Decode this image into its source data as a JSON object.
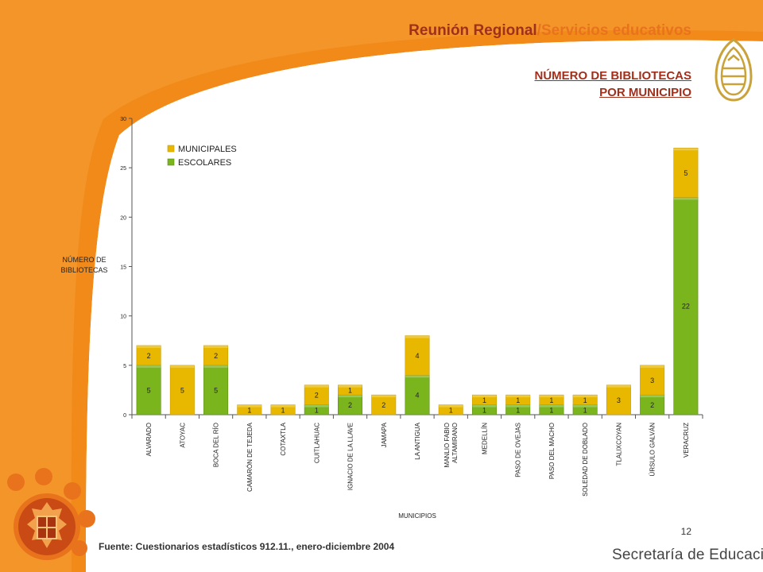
{
  "header": {
    "title_main": "Reunión Regional",
    "title_sep": "/",
    "title_sub": "Servicios educativos"
  },
  "chart_title": {
    "line1": "NÚMERO DE BIBLIOTECAS",
    "line2": "POR MUNICIPIO"
  },
  "footer": {
    "source": "Fuente: Cuestionarios estadísticos 912.11., enero-diciembre 2004",
    "page_number": "12",
    "brand": "Secretaría de Educación"
  },
  "icons": {
    "logo": "education-secretariat-logo-icon",
    "seal": "veracruz-coat-of-arms-icon"
  },
  "colors": {
    "municipales": "#e8b800",
    "escolares": "#7ab51d",
    "accent_orange": "#f28a1a",
    "title_red": "#a0301c"
  },
  "chart_data": {
    "type": "bar",
    "stacked": true,
    "ylabel": "NÚMERO DE\nBIBLIOTECAS",
    "xlabel": "MUNICIPIOS",
    "ylim": [
      0,
      30
    ],
    "yticks": [
      0,
      5,
      10,
      15,
      20,
      25,
      30
    ],
    "legend_position": "top-left",
    "categories": [
      "ALVARADO",
      "ATOYAC",
      "BOCA DEL RÍO",
      "CAMARÓN DE TEJEDA",
      "COTAXTLA",
      "CUITLAHUAC",
      "IGNACIO DE LA LLAVE",
      "JAMAPA",
      "LA ANTIGUA",
      "MANLIO FABIO\nALTAMIRANO",
      "MEDELLÍN",
      "PASO DE OVEJAS",
      "PASO DEL MACHO",
      "SOLEDAD DE DOBLADO",
      "TLALIXCOYAN",
      "ÚRSULO GALVÁN",
      "VERACRUZ"
    ],
    "series": [
      {
        "name": "ESCOLARES",
        "values": [
          5,
          0,
          5,
          0,
          0,
          1,
          2,
          0,
          4,
          0,
          1,
          1,
          1,
          1,
          0,
          2,
          22
        ]
      },
      {
        "name": "MUNICIPALES",
        "values": [
          2,
          5,
          2,
          1,
          1,
          2,
          1,
          2,
          4,
          1,
          1,
          1,
          1,
          1,
          3,
          3,
          5
        ]
      }
    ]
  }
}
